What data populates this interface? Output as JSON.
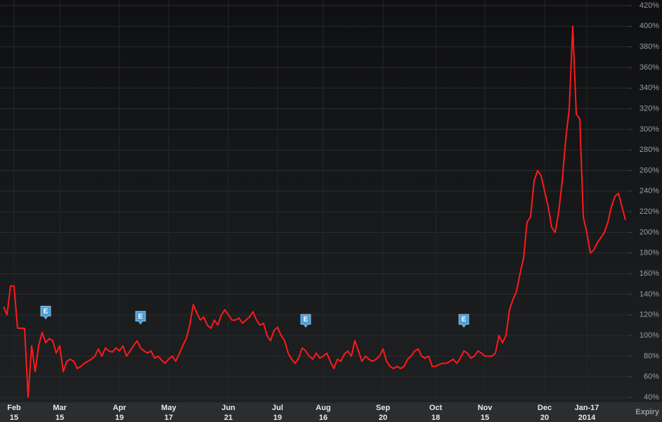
{
  "chart_data": {
    "type": "line",
    "categories": [
      null,
      null,
      null,
      "Feb 15",
      null,
      null,
      null,
      null,
      null,
      null,
      null,
      null,
      null,
      null,
      null,
      null,
      "Mar 15",
      null,
      null,
      null,
      null,
      null,
      null,
      null,
      null,
      null,
      null,
      null,
      null,
      null,
      null,
      null,
      null,
      "Apr 19",
      null,
      null,
      null,
      null,
      null,
      null,
      null,
      null,
      null,
      null,
      null,
      null,
      null,
      "May 17",
      null,
      null,
      null,
      null,
      null,
      null,
      null,
      null,
      null,
      null,
      null,
      null,
      null,
      null,
      null,
      null,
      "Jun 21",
      null,
      null,
      null,
      null,
      null,
      null,
      null,
      null,
      null,
      null,
      null,
      null,
      null,
      "Jul 19",
      null,
      null,
      null,
      null,
      null,
      null,
      null,
      null,
      null,
      null,
      null,
      null,
      "Aug 16",
      null,
      null,
      null,
      null,
      null,
      null,
      null,
      null,
      null,
      null,
      null,
      null,
      null,
      null,
      null,
      null,
      "Sep 20",
      null,
      null,
      null,
      null,
      null,
      null,
      null,
      null,
      null,
      null,
      null,
      null,
      null,
      null,
      "Oct 18",
      null,
      null,
      null,
      null,
      null,
      null,
      null,
      null,
      null,
      null,
      null,
      null,
      null,
      "Nov 15",
      null,
      null,
      null,
      null,
      null,
      null,
      null,
      null,
      null,
      null,
      null,
      null,
      null,
      null,
      null,
      null,
      "Dec 20",
      null,
      null,
      null,
      null,
      null,
      null,
      null,
      null,
      null,
      null,
      null,
      "Jan-17 2014",
      null,
      null,
      null,
      null,
      null,
      null,
      null,
      null,
      null,
      null,
      null
    ],
    "series": [
      {
        "color": "#ff1a1a",
        "values": [
          128,
          120,
          148,
          148,
          107,
          107,
          107,
          40,
          90,
          65,
          90,
          103,
          93,
          97,
          95,
          83,
          90,
          65,
          75,
          77,
          75,
          68,
          70,
          73,
          75,
          77,
          80,
          87,
          80,
          88,
          85,
          84,
          88,
          85,
          90,
          80,
          85,
          90,
          95,
          88,
          85,
          83,
          85,
          78,
          80,
          76,
          73,
          77,
          80,
          75,
          82,
          90,
          97,
          110,
          130,
          122,
          115,
          118,
          110,
          107,
          115,
          110,
          120,
          125,
          120,
          115,
          115,
          117,
          112,
          115,
          118,
          123,
          115,
          110,
          112,
          100,
          95,
          105,
          108,
          100,
          95,
          83,
          77,
          73,
          78,
          88,
          85,
          80,
          77,
          83,
          78,
          80,
          83,
          75,
          68,
          77,
          75,
          82,
          85,
          80,
          95,
          85,
          75,
          80,
          77,
          75,
          77,
          80,
          87,
          75,
          70,
          68,
          70,
          68,
          70,
          77,
          80,
          85,
          87,
          80,
          78,
          80,
          70,
          70,
          72,
          73,
          73,
          75,
          77,
          73,
          78,
          85,
          83,
          78,
          80,
          85,
          83,
          80,
          80,
          80,
          83,
          100,
          93,
          100,
          125,
          135,
          143,
          160,
          175,
          210,
          215,
          250,
          260,
          255,
          240,
          225,
          205,
          200,
          220,
          250,
          290,
          320,
          400,
          315,
          310,
          215,
          200,
          180,
          183,
          190,
          195,
          200,
          210,
          225,
          235,
          238,
          225,
          212
        ]
      }
    ],
    "markers": [
      {
        "label": "E",
        "category": 12
      },
      {
        "label": "E",
        "category": 39
      },
      {
        "label": "E",
        "category": 86
      },
      {
        "label": "E",
        "category": 131
      }
    ],
    "xlabel": "Expiry",
    "ylim": [
      40,
      420
    ],
    "yticks": [
      {
        "value": 40,
        "label": "40%"
      },
      {
        "value": 60,
        "label": "60%"
      },
      {
        "value": 80,
        "label": "80%"
      },
      {
        "value": 100,
        "label": "100%"
      },
      {
        "value": 120,
        "label": "120%"
      },
      {
        "value": 140,
        "label": "140%"
      },
      {
        "value": 160,
        "label": "160%"
      },
      {
        "value": 180,
        "label": "180%"
      },
      {
        "value": 200,
        "label": "200%"
      },
      {
        "value": 220,
        "label": "220%"
      },
      {
        "value": 240,
        "label": "240%"
      },
      {
        "value": 260,
        "label": "260%"
      },
      {
        "value": 280,
        "label": "280%"
      },
      {
        "value": 300,
        "label": "300%"
      },
      {
        "value": 320,
        "label": "320%"
      },
      {
        "value": 340,
        "label": "340%"
      },
      {
        "value": 360,
        "label": "360%"
      },
      {
        "value": 380,
        "label": "380%"
      },
      {
        "value": 400,
        "label": "400%"
      },
      {
        "value": 420,
        "label": "420%"
      }
    ],
    "grid": true
  }
}
